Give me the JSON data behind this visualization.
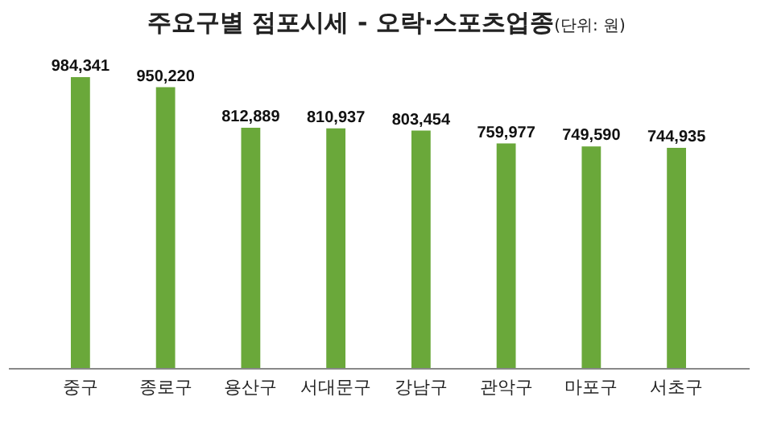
{
  "chart_data": {
    "type": "bar",
    "title": "주요구별 점포시세 - 오락·스포츠업종",
    "subtitle": "(단위: 원)",
    "categories": [
      "중구",
      "종로구",
      "용산구",
      "서대문구",
      "강남구",
      "관악구",
      "마포구",
      "서초구"
    ],
    "values": [
      984341,
      950220,
      812889,
      810937,
      803454,
      759977,
      749590,
      744935
    ],
    "value_labels": [
      "984,341",
      "950,220",
      "812,889",
      "810,937",
      "803,454",
      "759,977",
      "749,590",
      "744,935"
    ],
    "color": "#6aa83a"
  }
}
